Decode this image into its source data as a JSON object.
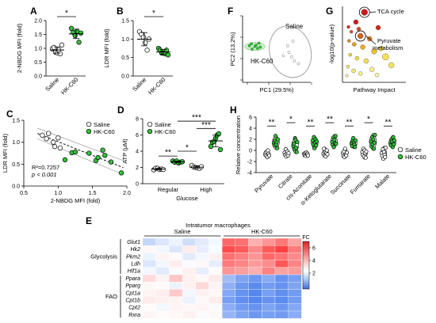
{
  "panel_letters": {
    "A": "A",
    "B": "B",
    "C": "C",
    "D": "D",
    "E": "E",
    "F": "F",
    "G": "G",
    "H": "H"
  },
  "colors": {
    "saline": "#ffffff",
    "hk": "#33c23a",
    "hk_dark": "#1a7a1f",
    "ellipse": "#999999"
  },
  "chart_data": [
    {
      "id": "A",
      "type": "scatter",
      "ylabel": "2-NBDG MFI (fold)",
      "categories": [
        "Saline",
        "HK-C60"
      ],
      "yticks": [
        "0.0",
        "0.5",
        "1.0",
        "1.5",
        "2.0"
      ],
      "ylim": [
        0,
        2.0
      ],
      "series": [
        {
          "name": "Saline",
          "values": [
            0.98,
            1.03,
            0.86,
            0.84,
            0.94,
            0.8,
            1.12
          ]
        },
        {
          "name": "HK-C60",
          "values": [
            1.72,
            1.57,
            1.46,
            1.61,
            1.22,
            1.55
          ]
        }
      ],
      "significance": "*"
    },
    {
      "id": "B",
      "type": "scatter",
      "ylabel": "LDR MFI (fold)",
      "categories": [
        "Saline",
        "HK-C60"
      ],
      "yticks": [
        "0.0",
        "0.5",
        "1.0",
        "1.5"
      ],
      "ylim": [
        0,
        1.5
      ],
      "series": [
        {
          "name": "Saline",
          "values": [
            1.2,
            1.13,
            1.05,
            0.9,
            0.7,
            1.0
          ]
        },
        {
          "name": "HK-C60",
          "values": [
            0.75,
            0.7,
            0.62,
            0.62,
            0.6,
            0.7,
            0.57
          ]
        }
      ],
      "significance": "*"
    },
    {
      "id": "C",
      "type": "scatter",
      "xlabel": "2-NBDG MFI (fold)",
      "ylabel": "LDR MFI (fold)",
      "xticks": [
        "0.5",
        "1.0",
        "1.5",
        "2.0"
      ],
      "xlim": [
        0.5,
        2.0
      ],
      "yticks": [
        "0.0",
        "0.5",
        "1.0",
        "1.5"
      ],
      "ylim": [
        0,
        1.5
      ],
      "legend": [
        "Saline",
        "HK-C60"
      ],
      "stats": [
        "R²=0.7257",
        "p < 0.001"
      ],
      "series": [
        {
          "name": "Saline",
          "x": [
            0.77,
            0.83,
            0.86,
            0.93,
            0.95,
            1.0,
            1.03
          ],
          "y": [
            1.16,
            1.08,
            1.2,
            1.0,
            0.9,
            1.1,
            0.87
          ]
        },
        {
          "name": "HK-C60",
          "x": [
            1.1,
            1.2,
            1.25,
            1.45,
            1.55,
            1.58,
            1.65,
            1.68,
            1.77,
            1.92
          ],
          "y": [
            0.6,
            0.76,
            0.78,
            0.75,
            0.58,
            0.65,
            0.82,
            0.7,
            0.55,
            0.3
          ]
        }
      ]
    },
    {
      "id": "D",
      "type": "scatter",
      "ylabel": "ATP (μM)",
      "xlabel": "Glucose",
      "categories": [
        "Regular",
        "High"
      ],
      "yticks": [
        "0",
        "2",
        "4",
        "6",
        "8"
      ],
      "ylim": [
        0,
        8
      ],
      "legend": [
        "Saline",
        "HK-C60"
      ],
      "series": [
        {
          "name": "Saline",
          "regular": [
            1.7,
            1.9,
            1.9,
            1.75,
            1.8,
            1.75
          ],
          "high": [
            2.25,
            2.05,
            2.0,
            1.95,
            1.9,
            2.1
          ]
        },
        {
          "name": "HK-C60",
          "regular": [
            2.8,
            2.65,
            2.8,
            2.55,
            2.65,
            2.7
          ],
          "high": [
            4.6,
            5.1,
            5.2,
            5.6,
            6.0,
            6.15,
            4.2
          ]
        }
      ],
      "significance": [
        "**",
        "*",
        "***",
        "***"
      ]
    },
    {
      "id": "E",
      "type": "heatmap",
      "title": "Intratumor macrophages",
      "groups": [
        "Saline",
        "HK-C60"
      ],
      "row_groups": [
        {
          "name": "Glycolysis",
          "genes": [
            "Glut1",
            "Hk2",
            "Pkm2",
            "Ldh",
            "Hif1a"
          ]
        },
        {
          "name": "FAO",
          "genes": [
            "Ppara",
            "Pparg",
            "Cpt1a",
            "Cpt1b",
            "Cpt2",
            "Rxra"
          ]
        }
      ],
      "legend_title": "FC",
      "legend_ticks": [
        "6",
        "4",
        "2"
      ],
      "values": [
        [
          -1.0,
          -0.6,
          -0.3,
          -0.8,
          -0.5,
          -0.2,
          4.2,
          4.0,
          2.2,
          3.0,
          3.8,
          2.6
        ],
        [
          0.2,
          -0.2,
          -0.6,
          0.5,
          -0.4,
          -0.1,
          5.0,
          4.6,
          3.3,
          4.6,
          5.3,
          3.7
        ],
        [
          -0.3,
          0.3,
          0.1,
          -0.5,
          -0.2,
          0.4,
          4.0,
          3.6,
          3.0,
          4.2,
          3.9,
          3.3
        ],
        [
          -0.6,
          -0.2,
          0.5,
          -0.1,
          0.2,
          -0.4,
          3.7,
          3.4,
          2.8,
          3.2,
          4.7,
          3.4
        ],
        [
          -0.2,
          -0.5,
          -0.1,
          0.4,
          -0.4,
          0.1,
          3.0,
          2.7,
          2.3,
          3.5,
          2.6,
          2.8
        ],
        [
          1.0,
          0.3,
          1.6,
          0.4,
          0.2,
          0.6,
          -1.6,
          -2.2,
          -2.5,
          -2.0,
          -2.6,
          -2.3
        ],
        [
          0.2,
          0.1,
          -0.3,
          0.4,
          1.1,
          0.3,
          -1.9,
          -2.5,
          -2.8,
          -2.4,
          -2.6,
          -2.2
        ],
        [
          0.3,
          0.5,
          1.5,
          -0.2,
          0.4,
          0.2,
          -2.1,
          -2.6,
          -2.9,
          -2.3,
          -2.7,
          -2.4
        ],
        [
          0.6,
          0.4,
          0.3,
          -0.3,
          0.2,
          0.5,
          -2.3,
          -2.7,
          -2.9,
          -2.6,
          -2.8,
          -2.4
        ],
        [
          0.1,
          -0.2,
          0.3,
          0.2,
          0.3,
          -0.1,
          -2.0,
          -2.4,
          -2.6,
          -2.2,
          -2.5,
          -2.1
        ],
        [
          0.3,
          0.1,
          0.2,
          0.4,
          -0.1,
          0.2,
          -1.8,
          -2.2,
          -2.5,
          -2.3,
          -2.4,
          -2.0
        ]
      ]
    },
    {
      "id": "F",
      "type": "scatter",
      "xlabel": "PC1 (29.5%)",
      "ylabel": "PC2 (13.2%)",
      "labels": [
        "Saline",
        "HK-C60"
      ],
      "series": [
        {
          "name": "Saline",
          "x": [
            0.6,
            0.68,
            0.72,
            0.76,
            0.82,
            0.66,
            0.74
          ],
          "y": [
            0.4,
            0.45,
            0.38,
            0.32,
            0.28,
            0.55,
            0.62
          ]
        },
        {
          "name": "HK-C60",
          "x": [
            0.1,
            0.14,
            0.18,
            0.22,
            0.26,
            0.13,
            0.2,
            0.24
          ],
          "y": [
            0.55,
            0.5,
            0.54,
            0.51,
            0.53,
            0.58,
            0.56,
            0.59
          ]
        }
      ]
    },
    {
      "id": "G",
      "type": "scatter",
      "xlabel": "Pathway Impact",
      "ylabel": "-log10(p-value)",
      "annotations": [
        "TCA cycle",
        "Pyruvate\nmetabolism"
      ],
      "points": [
        {
          "x": 0.33,
          "y": 0.96,
          "c": "#cc1a1a",
          "r": 4
        },
        {
          "x": 0.18,
          "y": 0.82,
          "c": "#cc1a1a",
          "r": 3
        },
        {
          "x": 0.05,
          "y": 0.75,
          "c": "#d03a1a",
          "r": 2
        },
        {
          "x": 0.23,
          "y": 0.72,
          "c": "#d84a1a",
          "r": 2.5
        },
        {
          "x": 0.57,
          "y": 0.74,
          "c": "#cc2a1a",
          "r": 3
        },
        {
          "x": 0.1,
          "y": 0.68,
          "c": "#d85018",
          "r": 2
        },
        {
          "x": 0.26,
          "y": 0.62,
          "c": "#d86018",
          "r": 3.5
        },
        {
          "x": 0.42,
          "y": 0.58,
          "c": "#e07a1a",
          "r": 3
        },
        {
          "x": 0.06,
          "y": 0.55,
          "c": "#e08a20",
          "r": 2
        },
        {
          "x": 0.15,
          "y": 0.5,
          "c": "#e59a22",
          "r": 2.5
        },
        {
          "x": 0.3,
          "y": 0.46,
          "c": "#eaaa2a",
          "r": 3
        },
        {
          "x": 0.5,
          "y": 0.4,
          "c": "#eebf30",
          "r": 3.5
        },
        {
          "x": 0.62,
          "y": 0.44,
          "c": "#f0cf3a",
          "r": 3
        },
        {
          "x": 0.08,
          "y": 0.35,
          "c": "#f0d23a",
          "r": 2
        },
        {
          "x": 0.2,
          "y": 0.3,
          "c": "#f3dc45",
          "r": 2.5
        },
        {
          "x": 0.36,
          "y": 0.26,
          "c": "#f5e04d",
          "r": 3
        },
        {
          "x": 0.7,
          "y": 0.32,
          "c": "#f5e24f",
          "r": 4
        },
        {
          "x": 0.04,
          "y": 0.18,
          "c": "#f7e96a",
          "r": 2
        },
        {
          "x": 0.14,
          "y": 0.12,
          "c": "#f8eb6e",
          "r": 2.5
        },
        {
          "x": 0.26,
          "y": 0.08,
          "c": "#faf08a",
          "r": 2.5
        },
        {
          "x": 0.46,
          "y": 0.14,
          "c": "#faf08a",
          "r": 3
        },
        {
          "x": 0.55,
          "y": 0.06,
          "c": "#fbf3a0",
          "r": 2.5
        },
        {
          "x": 0.8,
          "y": 0.2,
          "c": "#f6e35c",
          "r": 3.5
        },
        {
          "x": 0.02,
          "y": 0.05,
          "c": "#fbf4a8",
          "r": 1.8
        }
      ]
    },
    {
      "id": "H",
      "type": "scatter",
      "ylabel": "Relative concentration",
      "yticks": [
        "-4",
        "-2",
        "0",
        "2",
        "4",
        "6"
      ],
      "ylim": [
        -4,
        6
      ],
      "categories": [
        "Pyruvate",
        "Citrate",
        "cis-Aconitate",
        "α-Ketoglutarate",
        "Succinate",
        "Fumarate",
        "Malate"
      ],
      "legend": [
        "Saline",
        "HK-C60"
      ],
      "significance": [
        "**",
        "*",
        "**",
        "**",
        "**",
        "*",
        "**"
      ],
      "series": [
        {
          "name": "Saline",
          "values": [
            [
              -0.7,
              -0.4,
              -1.0,
              -0.2,
              -1.2,
              0.0,
              -0.6,
              -0.9
            ],
            [
              -0.4,
              -0.8,
              0.2,
              -1.1,
              -0.6,
              -0.2,
              -0.9,
              -0.5
            ],
            [
              -0.6,
              -0.8,
              -0.5,
              -1.0,
              -0.4,
              -0.7,
              -0.6,
              -0.9
            ],
            [
              -0.6,
              0.3,
              -0.9,
              -0.3,
              -1.1,
              -0.5,
              0.0,
              -0.7
            ],
            [
              -0.5,
              -1.0,
              -0.2,
              -1.2,
              0.3,
              -0.7,
              -0.9,
              -0.4
            ],
            [
              -0.3,
              -0.8,
              0.3,
              -1.1,
              0.0,
              -0.5,
              -1.3,
              -0.2
            ],
            [
              -0.5,
              -1.0,
              0.2,
              -1.5,
              -0.3,
              -0.8,
              -1.2,
              0.5
            ]
          ]
        },
        {
          "name": "HK-C60",
          "values": [
            [
              1.3,
              0.9,
              1.8,
              2.6,
              1.1,
              1.5,
              0.4,
              2.0
            ],
            [
              0.8,
              1.2,
              0.2,
              2.2,
              1.9,
              0.5,
              -0.3,
              1.5
            ],
            [
              1.8,
              1.1,
              2.4,
              0.4,
              1.4,
              2.0,
              0.9,
              1.6
            ],
            [
              1.5,
              1.0,
              2.3,
              0.6,
              1.9,
              1.3,
              2.6,
              1.2
            ],
            [
              1.2,
              0.8,
              1.7,
              2.2,
              1.4,
              1.0,
              0.6,
              1.8
            ],
            [
              1.6,
              0.7,
              2.4,
              1.1,
              2.0,
              0.3,
              1.4,
              2.8
            ],
            [
              1.3,
              0.9,
              2.0,
              1.6,
              0.6,
              2.4,
              1.1,
              1.8
            ]
          ]
        }
      ]
    }
  ]
}
